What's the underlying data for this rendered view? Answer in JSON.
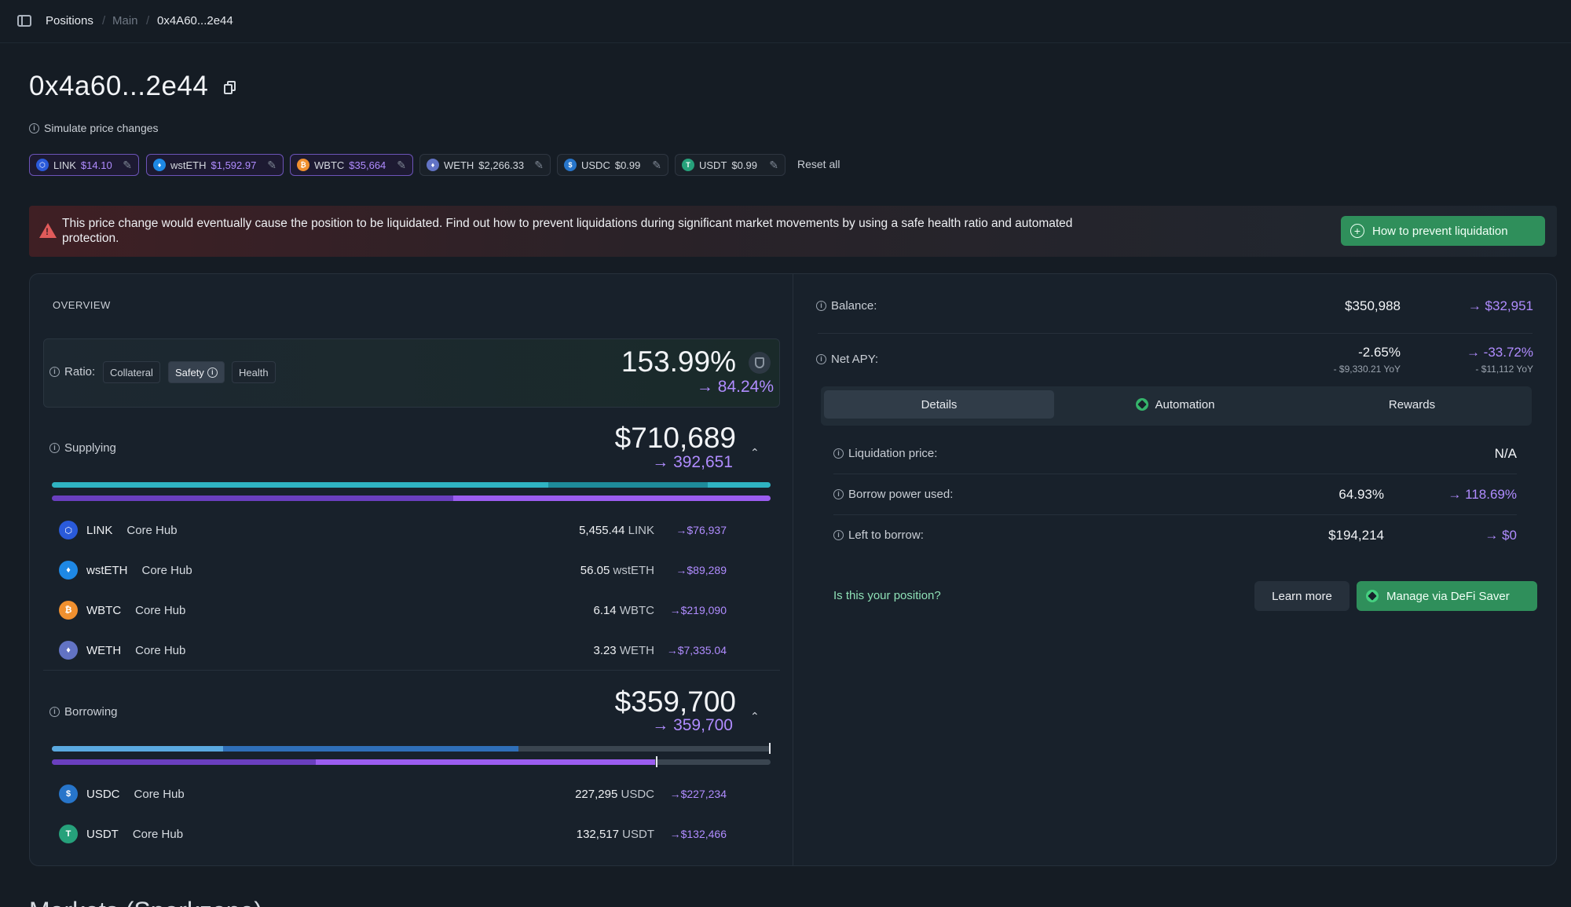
{
  "breadcrumb": {
    "items": [
      "Positions",
      "Main",
      "0x4A60...2e44"
    ],
    "separator": "/"
  },
  "page": {
    "title": "0x4a60...2e44",
    "bottom_heading": "Markets (Sparkzone)"
  },
  "simulate": {
    "label": "Simulate price changes",
    "chips": [
      {
        "token": "LINK",
        "price": "$14.10",
        "edited": true,
        "color": "#2a5ada"
      },
      {
        "token": "wstETH",
        "price": "$1,592.97",
        "edited": true,
        "color": "#1e88e5"
      },
      {
        "token": "WBTC",
        "price": "$35,664",
        "edited": true,
        "color": "#f0902f"
      },
      {
        "token": "WETH",
        "price": "$2,266.33",
        "edited": false,
        "color": "#6273c4"
      },
      {
        "token": "USDC",
        "price": "$0.99",
        "edited": false,
        "color": "#2775ca"
      },
      {
        "token": "USDT",
        "price": "$0.99",
        "edited": false,
        "color": "#26a17b"
      }
    ],
    "reset_label": "Reset all"
  },
  "warning": {
    "text": "This price change would eventually cause the position to be liquidated. Find out how to prevent liquidations during significant market movements by using a safe health ratio and automated protection.",
    "button_label": "How to prevent liquidation"
  },
  "overview": {
    "label": "OVERVIEW",
    "ratio": {
      "label": "Ratio:",
      "options": [
        "Collateral",
        "Safety",
        "Health"
      ],
      "selected": "Safety",
      "value": "153.99%",
      "new_value": "84.24%"
    },
    "supplying": {
      "label": "Supplying",
      "total": "$710,689",
      "new_total": "392,651",
      "assets": [
        {
          "symbol": "LINK",
          "hub": "Core Hub",
          "amount": "5,455.44",
          "unit": "LINK",
          "usd": "$76,937",
          "color": "#2a5ada",
          "glyph": "⬡"
        },
        {
          "symbol": "wstETH",
          "hub": "Core Hub",
          "amount": "56.05",
          "unit": "wstETH",
          "usd": "$89,289",
          "color": "#1e88e5",
          "glyph": "♦"
        },
        {
          "symbol": "WBTC",
          "hub": "Core Hub",
          "amount": "6.14",
          "unit": "WBTC",
          "usd": "$219,090",
          "color": "#f0902f",
          "glyph": "₿"
        },
        {
          "symbol": "WETH",
          "hub": "Core Hub",
          "amount": "3.23",
          "unit": "WETH",
          "usd": "$7,335.04",
          "color": "#6273c4",
          "glyph": "♦"
        }
      ]
    },
    "borrowing": {
      "label": "Borrowing",
      "total": "$359,700",
      "new_total": "359,700",
      "assets": [
        {
          "symbol": "USDC",
          "hub": "Core Hub",
          "amount": "227,295",
          "unit": "USDC",
          "usd": "$227,234",
          "color": "#2775ca",
          "glyph": "$"
        },
        {
          "symbol": "USDT",
          "hub": "Core Hub",
          "amount": "132,517",
          "unit": "USDT",
          "usd": "$132,466",
          "color": "#26a17b",
          "glyph": "T"
        }
      ]
    }
  },
  "summary": {
    "balance": {
      "label": "Balance:",
      "value": "$350,988",
      "new_value": "$32,951"
    },
    "net_apy": {
      "label": "Net APY:",
      "value": "-2.65%",
      "value_sub": "- $9,330.21 YoY",
      "new_value": "-33.72%",
      "new_sub": "- $11,112 YoY"
    },
    "tabs": [
      "Details",
      "Automation",
      "Rewards"
    ],
    "active_tab": "Details",
    "details": {
      "liquidation_price": {
        "label": "Liquidation price:",
        "value": "N/A"
      },
      "borrow_power": {
        "label": "Borrow power used:",
        "value": "64.93%",
        "new_value": "118.69%"
      },
      "left_to_borrow": {
        "label": "Left to borrow:",
        "value": "$194,214",
        "new_value": "$0"
      }
    },
    "question": "Is this your position?",
    "learn_more": "Learn more",
    "manage": "Manage via DeFi Saver"
  },
  "icons": {
    "arrow": "→",
    "chevron_up": "⌃",
    "pencil": "✎",
    "info": "i"
  },
  "colors": {
    "accent_purple": "#b08cff",
    "accent_green": "#2f8f5b",
    "warning_red": "#e05a5a"
  }
}
